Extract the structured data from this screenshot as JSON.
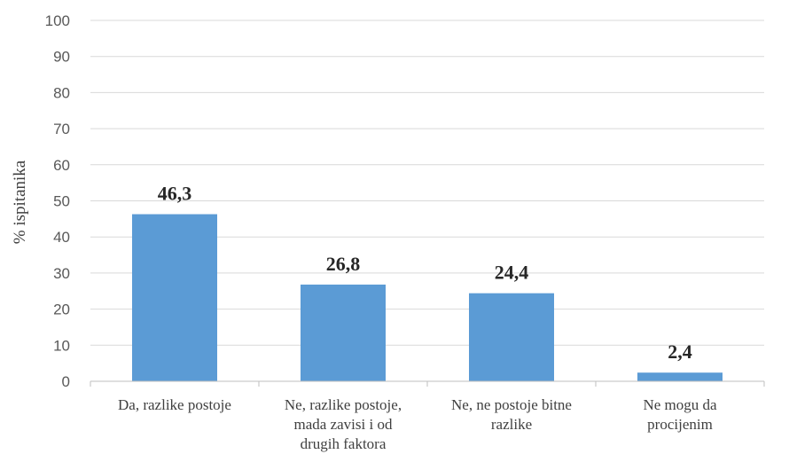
{
  "chart_data": {
    "type": "bar",
    "title": "",
    "xlabel": "",
    "ylabel": "% ispitanika",
    "ylim": [
      0,
      100
    ],
    "yticks": [
      0,
      10,
      20,
      30,
      40,
      50,
      60,
      70,
      80,
      90,
      100
    ],
    "grid": true,
    "legend": "none",
    "bar_color": "#5B9BD5",
    "categories": [
      [
        "Da, razlike postoje"
      ],
      [
        "Ne, razlike postoje,",
        "mada zavisi i od",
        "drugih faktora"
      ],
      [
        "Ne, ne postoje bitne",
        "razlike"
      ],
      [
        "Ne mogu da",
        "procijenim"
      ]
    ],
    "values": [
      46.3,
      26.8,
      24.4,
      2.4
    ],
    "value_labels": [
      "46,3",
      "26,8",
      "24,4",
      "2,4"
    ]
  }
}
